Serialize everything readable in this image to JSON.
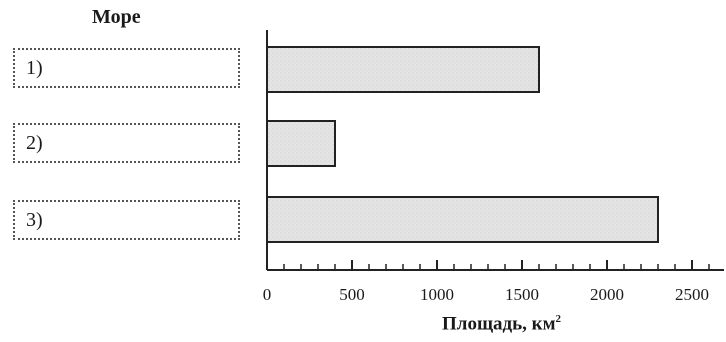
{
  "heading": "Море",
  "rows": [
    {
      "label": "1)"
    },
    {
      "label": "2)"
    },
    {
      "label": "3)"
    }
  ],
  "chart_data": {
    "type": "bar",
    "orientation": "horizontal",
    "categories": [
      "1)",
      "2)",
      "3)"
    ],
    "values": [
      1600,
      400,
      2300
    ],
    "xlabel": "Площадь, км",
    "xlabel_sup": "2",
    "xlim": [
      0,
      2700
    ],
    "xticks": [
      0,
      500,
      1000,
      1500,
      2000,
      2500
    ],
    "bar_color": "#e4e4e4",
    "grid": false
  }
}
